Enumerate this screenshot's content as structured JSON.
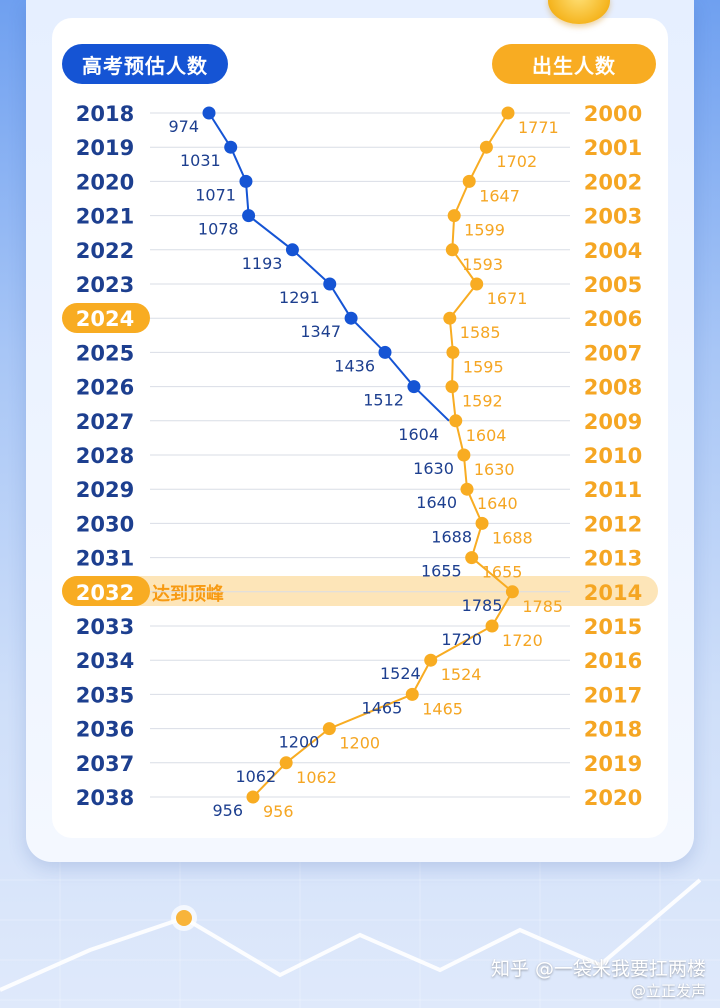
{
  "headers": {
    "left": "高考预估人数",
    "right": "出生人数"
  },
  "peak_label": "达到顶峰",
  "watermark": {
    "line1": "知乎 @一袋米我要扛两楼",
    "line2": "@立正发声"
  },
  "colors": {
    "blue": "#1554d4",
    "orange": "#f8ac22",
    "label_blue": "#1d3f8f",
    "label_orange": "#f5a623"
  },
  "chart_data": {
    "type": "line",
    "exam_years": [
      "2018",
      "2019",
      "2020",
      "2021",
      "2022",
      "2023",
      "2024",
      "2025",
      "2026",
      "2027",
      "2028",
      "2029",
      "2030",
      "2031",
      "2032",
      "2033",
      "2034",
      "2035",
      "2036",
      "2037",
      "2038"
    ],
    "birth_years": [
      "2000",
      "2001",
      "2002",
      "2003",
      "2004",
      "2005",
      "2006",
      "2007",
      "2008",
      "2009",
      "2010",
      "2011",
      "2012",
      "2013",
      "2014",
      "2015",
      "2016",
      "2017",
      "2018",
      "2019",
      "2020"
    ],
    "highlighted_exam_years": [
      "2024",
      "2032"
    ],
    "series": [
      {
        "name": "高考预估人数",
        "values": [
          974,
          1031,
          1071,
          1078,
          1193,
          1291,
          1347,
          1436,
          1512,
          1604,
          1630,
          1640,
          1688,
          1655,
          1785,
          1720,
          1524,
          1465,
          1200,
          1062,
          956
        ]
      },
      {
        "name": "出生人数",
        "values": [
          1771,
          1702,
          1647,
          1599,
          1593,
          1671,
          1585,
          1595,
          1592,
          1604,
          1630,
          1640,
          1688,
          1655,
          1785,
          1720,
          1524,
          1465,
          1200,
          1062,
          956
        ]
      }
    ]
  }
}
